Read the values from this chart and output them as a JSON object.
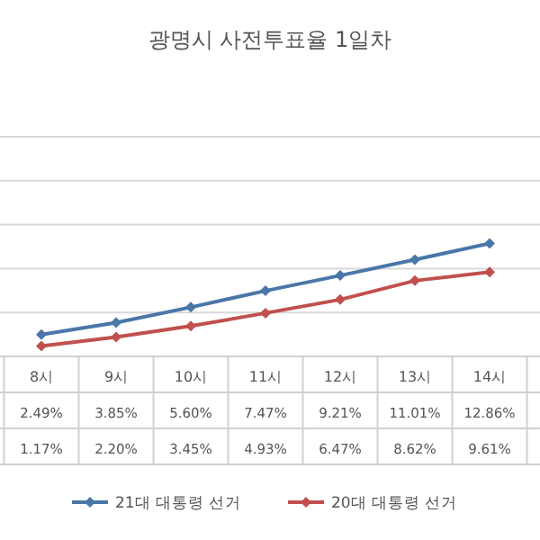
{
  "chart_data": {
    "type": "line",
    "title": "광명시 사전투표율 1일차",
    "categories": [
      "8시",
      "9시",
      "10시",
      "11시",
      "12시",
      "13시",
      "14시"
    ],
    "series": [
      {
        "name": "21대 대통령 선거",
        "color": "#4a76a8",
        "values": [
          2.49,
          3.85,
          5.6,
          7.47,
          9.21,
          11.01,
          12.86
        ],
        "value_labels": [
          "2.49%",
          "3.85%",
          "5.60%",
          "7.47%",
          "9.21%",
          "11.01%",
          "12.86%"
        ]
      },
      {
        "name": "20대 대통령 선거",
        "color": "#c0504d",
        "values": [
          1.17,
          2.2,
          3.45,
          4.93,
          6.47,
          8.62,
          9.61
        ],
        "value_labels": [
          "1.17%",
          "2.20%",
          "3.45%",
          "4.93%",
          "6.47%",
          "8.62%",
          "9.61%"
        ]
      }
    ],
    "ylim": [
      0,
      25
    ],
    "yticks": [
      {
        "value": 0,
        "label": null
      },
      {
        "value": 5,
        "label": null
      },
      {
        "value": 10,
        "label": null
      },
      {
        "value": 15,
        "label": null
      },
      {
        "value": 20,
        "label": null
      },
      {
        "value": 25,
        "label": null
      }
    ],
    "grid": "y",
    "legend": "bottom",
    "marker": "diamond",
    "line_style": "solid"
  }
}
